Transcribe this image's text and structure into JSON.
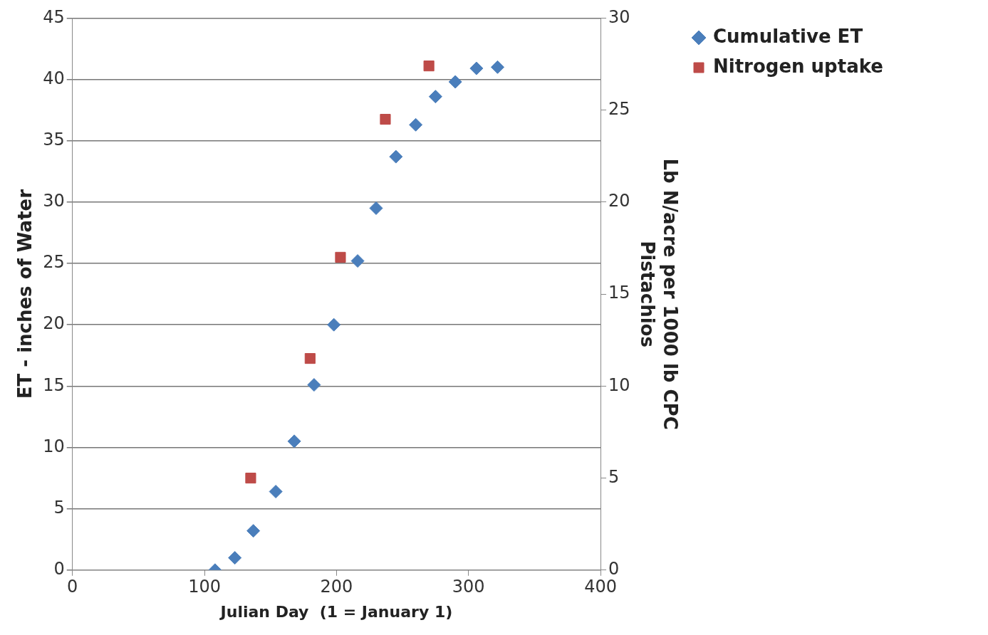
{
  "chart_data": {
    "type": "scatter",
    "xlabel": "Julian Day  (1 = January 1)",
    "ylabel": "ET - inches of Water",
    "y2label": "Lb N/acre per 1000 lb CPC\nPistachios",
    "xlim": [
      0,
      400
    ],
    "xticks": [
      0,
      100,
      200,
      300,
      400
    ],
    "ylim": [
      0,
      45
    ],
    "yticks": [
      0,
      5,
      10,
      15,
      20,
      25,
      30,
      35,
      40,
      45
    ],
    "y2lim": [
      0,
      30
    ],
    "y2ticks": [
      0,
      5,
      10,
      15,
      20,
      25,
      30
    ],
    "grid": "y",
    "legend": "top right",
    "series": [
      {
        "name": "Cumulative ET",
        "color": "#4a7ebb",
        "marker": "diamond",
        "x": [
          108,
          123,
          137,
          154,
          168,
          183,
          198,
          216,
          230,
          245,
          260,
          275,
          290,
          306,
          322
        ],
        "values": [
          0,
          1,
          3.2,
          6.4,
          10.5,
          15.1,
          20,
          25.2,
          29.5,
          33.7,
          36.3,
          38.6,
          39.8,
          40.9,
          41
        ]
      },
      {
        "name": "Nitrogen uptake",
        "color": "#be4b48",
        "marker": "square",
        "axis": "y2",
        "x": [
          135,
          180,
          203,
          237,
          270
        ],
        "values": [
          5,
          11.5,
          17,
          24.5,
          27.4
        ]
      }
    ]
  }
}
